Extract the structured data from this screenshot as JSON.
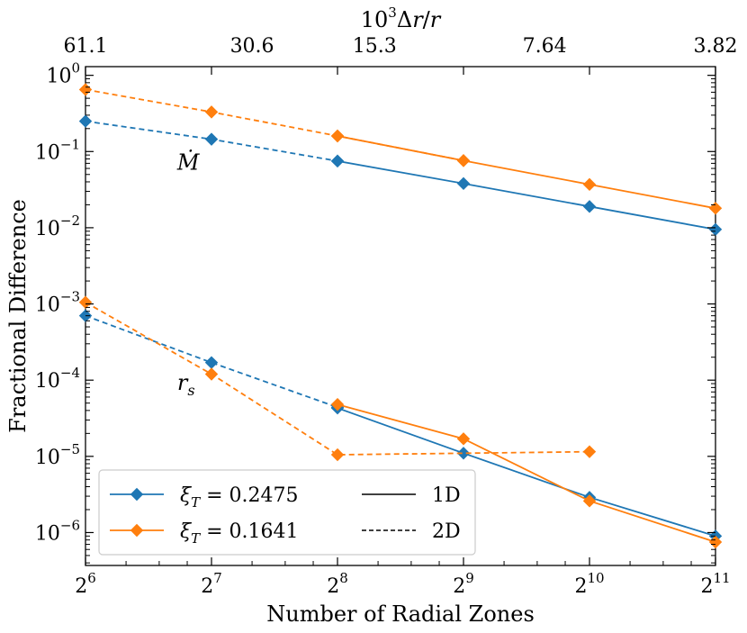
{
  "chart_data": {
    "type": "line",
    "title": "",
    "xlabel": "Number of Radial Zones",
    "ylabel": "Fractional Difference",
    "top_xlabel": "10³Δr/r",
    "x_scale": "log2",
    "y_scale": "log10",
    "xlim": [
      64,
      2048
    ],
    "ylim": [
      3.7e-07,
      1.3
    ],
    "x": [
      64,
      128,
      256,
      512,
      1024,
      2048
    ],
    "x_tick_labels": [
      {
        "base": "2",
        "exp": "6"
      },
      {
        "base": "2",
        "exp": "7"
      },
      {
        "base": "2",
        "exp": "8"
      },
      {
        "base": "2",
        "exp": "9"
      },
      {
        "base": "2",
        "exp": "10"
      },
      {
        "base": "2",
        "exp": "11"
      }
    ],
    "top_x_tick_labels": [
      "61.1",
      "30.6",
      "15.3",
      "7.64",
      "3.82"
    ],
    "top_x_tick_positions": [
      64,
      128,
      256,
      512,
      1024
    ],
    "top_x_tick_positions_last": 2048,
    "y_tick_labels": [
      {
        "base": "10",
        "exp": "0",
        "value": 1
      },
      {
        "base": "10",
        "exp": "−1",
        "value": 0.1
      },
      {
        "base": "10",
        "exp": "−2",
        "value": 0.01
      },
      {
        "base": "10",
        "exp": "−3",
        "value": 0.001
      },
      {
        "base": "10",
        "exp": "−4",
        "value": 0.0001
      },
      {
        "base": "10",
        "exp": "−5",
        "value": 1e-05
      },
      {
        "base": "10",
        "exp": "−6",
        "value": 1e-06
      }
    ],
    "series": [
      {
        "name": "Mdot xi=0.2475 1D",
        "color": "#1f77b4",
        "style": "solid",
        "x": [
          256,
          512,
          1024,
          2048
        ],
        "values": [
          0.075,
          0.038,
          0.019,
          0.0095
        ]
      },
      {
        "name": "Mdot xi=0.2475 2D",
        "color": "#1f77b4",
        "style": "dashed",
        "x": [
          64,
          128,
          256
        ],
        "values": [
          0.25,
          0.145,
          0.075
        ]
      },
      {
        "name": "Mdot xi=0.1641 1D",
        "color": "#ff7f0e",
        "style": "solid",
        "x": [
          256,
          512,
          1024,
          2048
        ],
        "values": [
          0.16,
          0.076,
          0.037,
          0.018
        ]
      },
      {
        "name": "Mdot xi=0.1641 2D",
        "color": "#ff7f0e",
        "style": "dashed",
        "x": [
          64,
          128,
          256,
          512
        ],
        "values": [
          0.65,
          0.33,
          0.16,
          0.076
        ]
      },
      {
        "name": "rs xi=0.2475 1D",
        "color": "#1f77b4",
        "style": "solid",
        "x": [
          256,
          512,
          1024,
          2048
        ],
        "values": [
          4.3e-05,
          1.1e-05,
          2.9e-06,
          9e-07
        ]
      },
      {
        "name": "rs xi=0.2475 2D",
        "color": "#1f77b4",
        "style": "dashed",
        "x": [
          64,
          128,
          256
        ],
        "values": [
          0.0007,
          0.00017,
          4.4e-05
        ]
      },
      {
        "name": "rs xi=0.1641 1D",
        "color": "#ff7f0e",
        "style": "solid",
        "x": [
          256,
          512,
          1024,
          2048
        ],
        "values": [
          4.8e-05,
          1.7e-05,
          2.6e-06,
          7.5e-07
        ]
      },
      {
        "name": "rs xi=0.1641 2D",
        "color": "#ff7f0e",
        "style": "dashed",
        "x": [
          64,
          128,
          256,
          1024
        ],
        "values": [
          0.00105,
          0.00012,
          1.05e-05,
          1.15e-05
        ]
      }
    ],
    "annotations": [
      {
        "text": "Ṁ",
        "x": 106,
        "y": 0.058
      },
      {
        "text": "r",
        "sub": "s",
        "x": 106,
        "y": 7.5e-05
      }
    ],
    "legend": {
      "position": "bottom-left",
      "entries": [
        {
          "label_prefix": "ξ",
          "label_sub": "T",
          "label_rest": " = 0.2475",
          "color": "#1f77b4",
          "style": "marker"
        },
        {
          "label_prefix": "ξ",
          "label_sub": "T",
          "label_rest": " = 0.1641",
          "color": "#ff7f0e",
          "style": "marker"
        },
        {
          "label": "1D",
          "color": "#000000",
          "style": "solid"
        },
        {
          "label": "2D",
          "color": "#000000",
          "style": "dashed"
        }
      ]
    }
  }
}
